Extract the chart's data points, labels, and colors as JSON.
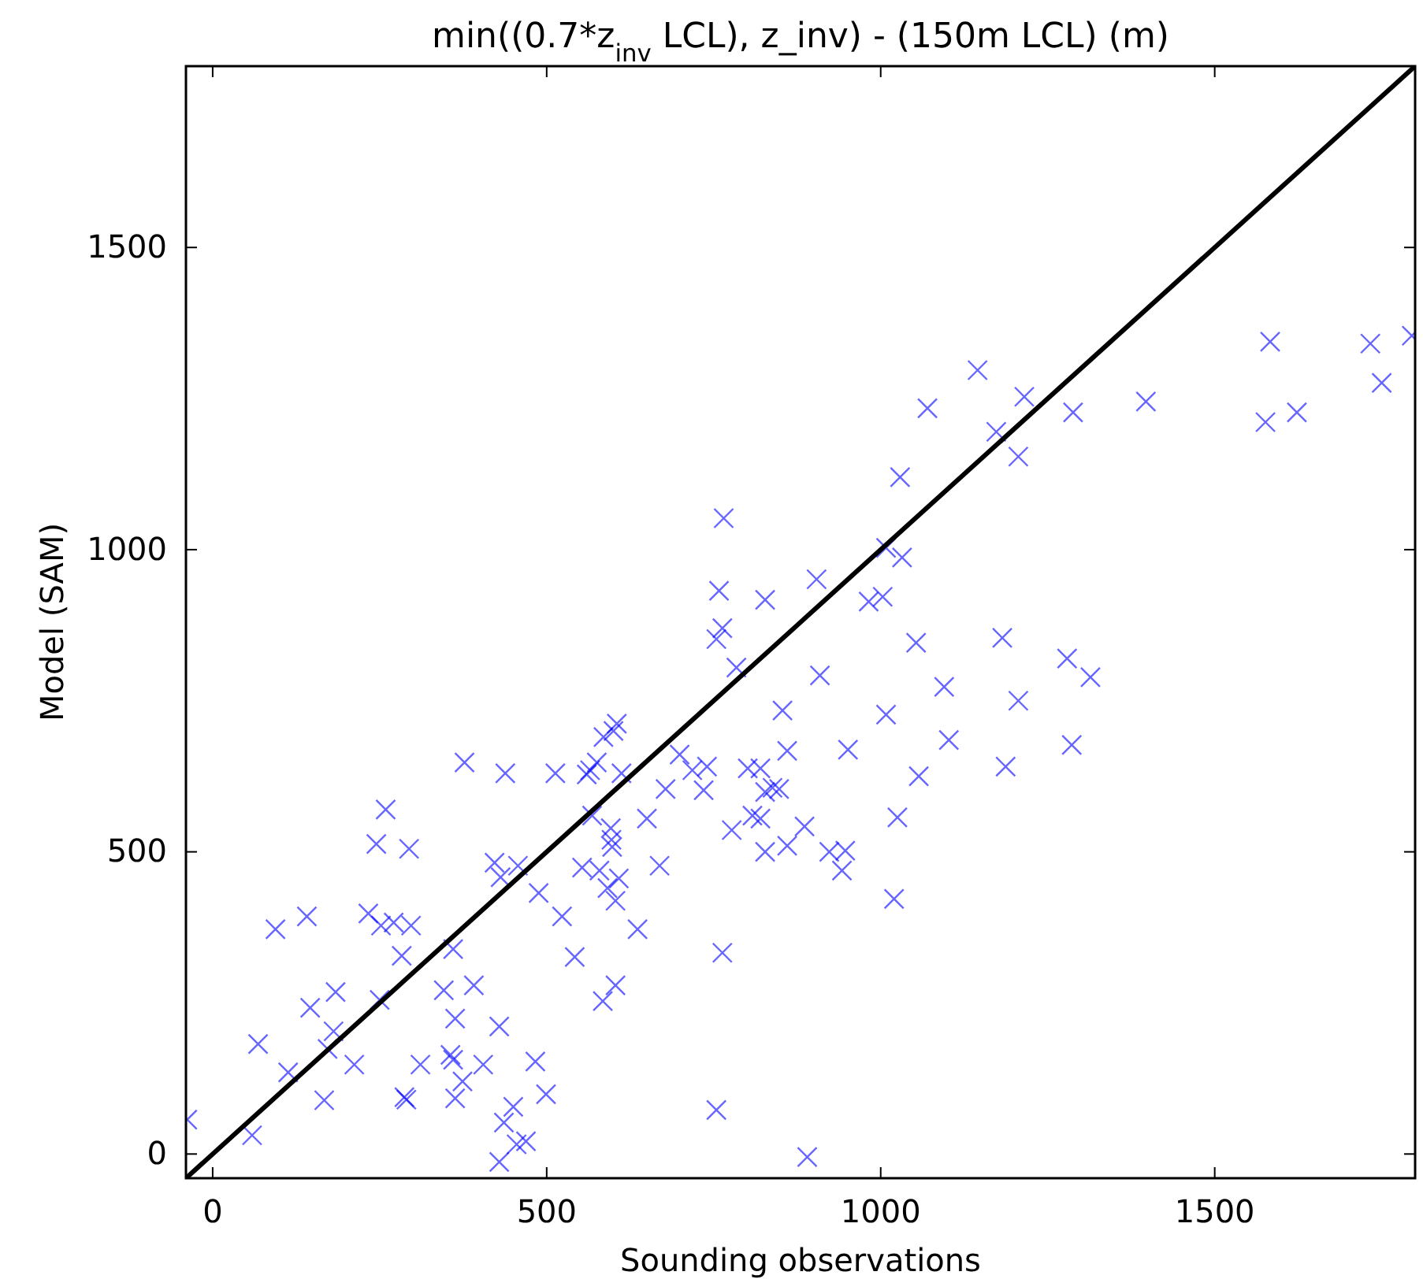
{
  "chart_data": {
    "type": "scatter",
    "title": "min((0.7*z$_{inv}$ LCL), z_inv) - (150m LCL) (m)",
    "xlabel": "Sounding observations",
    "ylabel": "Model (SAM)",
    "xlim": [
      -40,
      1800
    ],
    "ylim": [
      -40,
      1800
    ],
    "xticks": [
      0,
      500,
      1000,
      1500
    ],
    "yticks": [
      0,
      500,
      1000,
      1500
    ],
    "series": [
      {
        "color": "#0000ff",
        "marker": "cross",
        "x": [
          -38,
          59,
          68,
          113,
          167,
          94,
          141,
          146,
          184,
          181,
          172,
          212,
          233,
          245,
          259,
          252,
          271,
          294,
          297,
          283,
          250,
          287,
          290,
          311,
          346,
          360,
          363,
          391,
          356,
          360,
          374,
          363,
          405,
          429,
          483,
          499,
          450,
          436,
          455,
          469,
          429,
          377,
          438,
          513,
          560,
          565,
          575,
          612,
          422,
          431,
          457,
          488,
          523,
          542,
          568,
          553,
          579,
          596,
          597,
          598,
          608,
          591,
          603,
          603,
          584,
          585,
          600,
          605,
          1029,
          765,
          758,
          827,
          904,
          763,
          754,
          784,
          1008,
          1032,
          982,
          1003,
          1053,
          1182,
          1279,
          1314,
          909,
          1095,
          1206,
          853,
          1008,
          860,
          951,
          1102,
          1286,
          1057,
          1187,
          699,
          718,
          740,
          801,
          820,
          678,
          735,
          827,
          838,
          848,
          808,
          820,
          650,
          777,
          886,
          860,
          827,
          923,
          947,
          942,
          1025,
          669,
          1020,
          636,
          763,
          754,
          890,
          1397,
          1583,
          1576,
          1623,
          1733,
          1750,
          1795,
          1145,
          1215,
          1070,
          1173,
          1206,
          1288
        ],
        "values": [
          57,
          31,
          182,
          135,
          89,
          372,
          393,
          242,
          268,
          203,
          174,
          148,
          398,
          513,
          570,
          378,
          383,
          505,
          378,
          328,
          255,
          94,
          90,
          148,
          271,
          339,
          224,
          279,
          164,
          156,
          120,
          92,
          148,
          211,
          153,
          99,
          78,
          52,
          16,
          21,
          -13,
          648,
          630,
          630,
          628,
          635,
          648,
          630,
          482,
          458,
          477,
          432,
          393,
          326,
          560,
          474,
          469,
          539,
          520,
          508,
          456,
          440,
          419,
          279,
          253,
          690,
          700,
          712,
          1120,
          1052,
          932,
          917,
          951,
          870,
          852,
          805,
          1003,
          987,
          914,
          922,
          846,
          854,
          820,
          789,
          792,
          773,
          750,
          734,
          727,
          667,
          669,
          685,
          677,
          625,
          641,
          661,
          635,
          641,
          638,
          638,
          604,
          602,
          599,
          606,
          604,
          560,
          555,
          555,
          536,
          542,
          510,
          500,
          500,
          502,
          469,
          557,
          477,
          422,
          372,
          333,
          73,
          -5,
          1245,
          1344,
          1211,
          1227,
          1341,
          1276,
          1354,
          1297,
          1253,
          1234,
          1195,
          1154,
          1227
        ]
      },
      {
        "type": "line",
        "color": "#000000",
        "line_style": "solid",
        "marker": "none",
        "x": [
          -40,
          1800
        ],
        "values": [
          -40,
          1800
        ]
      }
    ]
  }
}
